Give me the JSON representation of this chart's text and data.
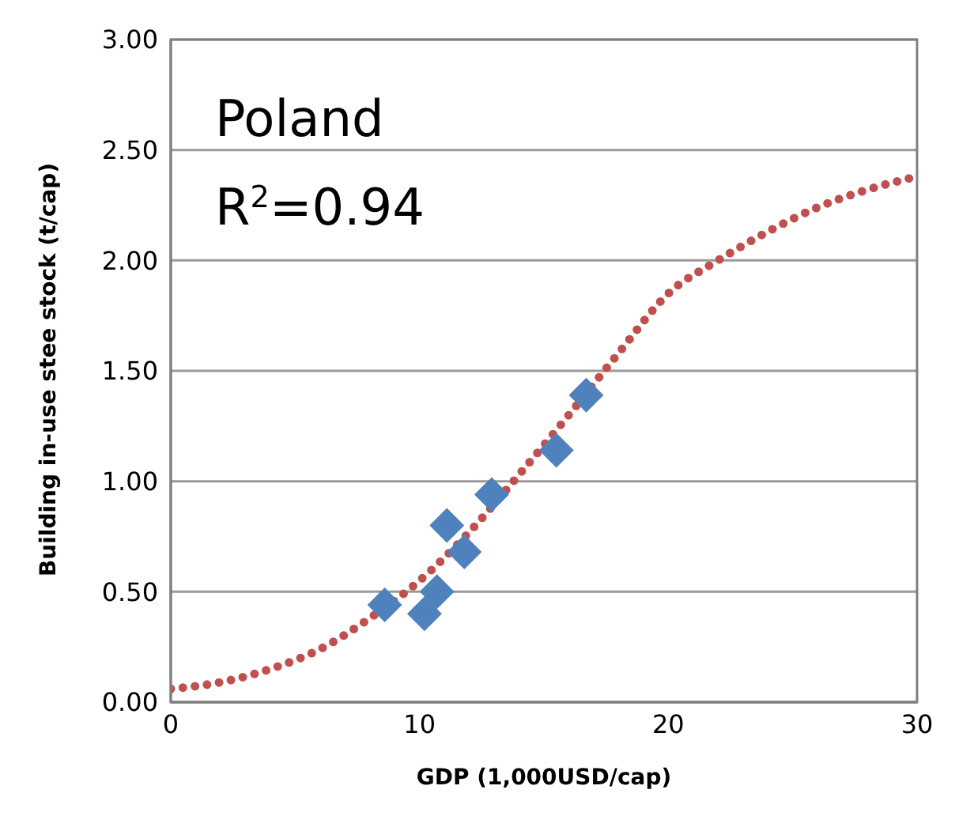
{
  "chart_data": {
    "type": "scatter",
    "xlabel": "GDP (1,000USD/cap)",
    "ylabel": "Building in-use stee stock (t/cap)",
    "annotations": [
      "Poland",
      "R$^{2}$=0.94"
    ],
    "xlim": [
      0,
      30
    ],
    "xticks": [
      0,
      10,
      20,
      30
    ],
    "ylim": [
      0,
      3
    ],
    "yticks": [
      {
        "value": 0,
        "label": "0.00"
      },
      {
        "value": 0.5,
        "label": "0.50"
      },
      {
        "value": 1,
        "label": "1.00"
      },
      {
        "value": 1.5,
        "label": "1.50"
      },
      {
        "value": 2,
        "label": "2.00"
      },
      {
        "value": 2.5,
        "label": "2.50"
      },
      {
        "value": 3,
        "label": "3.00"
      }
    ],
    "grid": "y",
    "marker": "diamond",
    "series": [
      {
        "type": "line",
        "color": "#c0504d",
        "line_style": "dotted",
        "marker": "none",
        "x": [
          0,
          2,
          4,
          6,
          8,
          10,
          12,
          14,
          16,
          18,
          20,
          22,
          24,
          26,
          28,
          30
        ],
        "values": [
          0.06,
          0.09,
          0.15,
          0.24,
          0.38,
          0.55,
          0.77,
          1.03,
          1.3,
          1.58,
          1.85,
          2.0,
          2.13,
          2.24,
          2.32,
          2.38
        ]
      },
      {
        "color": "#4f81bd",
        "x": [
          8.6,
          10.2,
          10.7,
          11.1,
          11.8,
          12.9,
          15.5,
          16.7
        ],
        "values": [
          0.44,
          0.4,
          0.5,
          0.8,
          0.68,
          0.94,
          1.14,
          1.39
        ]
      }
    ]
  }
}
